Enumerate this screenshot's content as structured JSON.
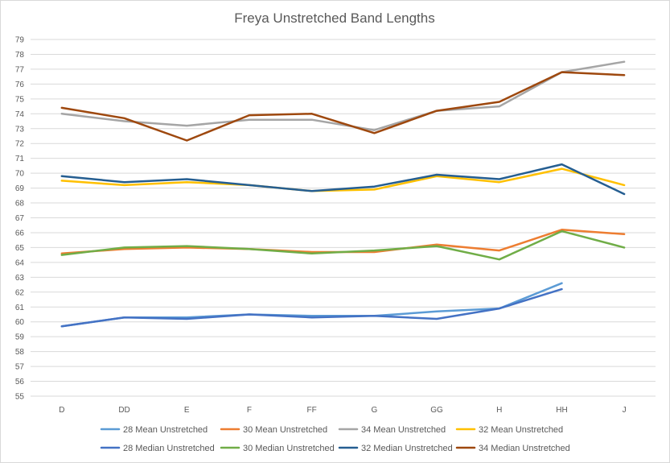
{
  "chart_data": {
    "type": "line",
    "title": "Freya Unstretched Band Lengths",
    "xlabel": "",
    "ylabel": "",
    "categories": [
      "D",
      "DD",
      "E",
      "F",
      "FF",
      "G",
      "GG",
      "H",
      "HH",
      "J"
    ],
    "y_ticks": [
      "55",
      "56",
      "57",
      "58",
      "59",
      "60",
      "61",
      "62",
      "63",
      "64",
      "65",
      "66",
      "67",
      "68",
      "69",
      "70",
      "71",
      "72",
      "73",
      "74",
      "75",
      "76",
      "77",
      "78",
      "79"
    ],
    "ylim": [
      55,
      79
    ],
    "grid": true,
    "legend_position": "bottom",
    "series": [
      {
        "name": "28 Mean Unstretched",
        "color": "#5b9bd5",
        "values": [
          59.7,
          60.3,
          60.3,
          60.5,
          60.4,
          60.4,
          60.7,
          60.9,
          62.6,
          null
        ]
      },
      {
        "name": "30 Mean Unstretched",
        "color": "#ed7d31",
        "values": [
          64.6,
          64.9,
          65.0,
          64.9,
          64.7,
          64.7,
          65.2,
          64.8,
          66.2,
          65.9
        ]
      },
      {
        "name": "34 Mean Unstretched",
        "color": "#a5a5a5",
        "values": [
          74.0,
          73.5,
          73.2,
          73.6,
          73.6,
          72.9,
          74.2,
          74.5,
          76.8,
          77.5
        ]
      },
      {
        "name": "32 Mean Unstretched",
        "color": "#ffc000",
        "values": [
          69.5,
          69.2,
          69.4,
          69.2,
          68.8,
          68.9,
          69.8,
          69.4,
          70.3,
          69.2
        ]
      },
      {
        "name": "28 Median Unstretched",
        "color": "#4472c4",
        "values": [
          59.7,
          60.3,
          60.2,
          60.5,
          60.3,
          60.4,
          60.2,
          60.9,
          62.2,
          null
        ]
      },
      {
        "name": "30 Median Unstretched",
        "color": "#70ad47",
        "values": [
          64.5,
          65.0,
          65.1,
          64.9,
          64.6,
          64.8,
          65.1,
          64.2,
          66.1,
          65.0
        ]
      },
      {
        "name": "32 Median Unstretched",
        "color": "#255e91",
        "values": [
          69.8,
          69.4,
          69.6,
          69.2,
          68.8,
          69.1,
          69.9,
          69.6,
          70.6,
          68.6
        ]
      },
      {
        "name": "34 Median Unstretched",
        "color": "#9e480e",
        "values": [
          74.4,
          73.7,
          72.2,
          73.9,
          74.0,
          72.7,
          74.2,
          74.8,
          76.8,
          76.6
        ]
      }
    ]
  }
}
